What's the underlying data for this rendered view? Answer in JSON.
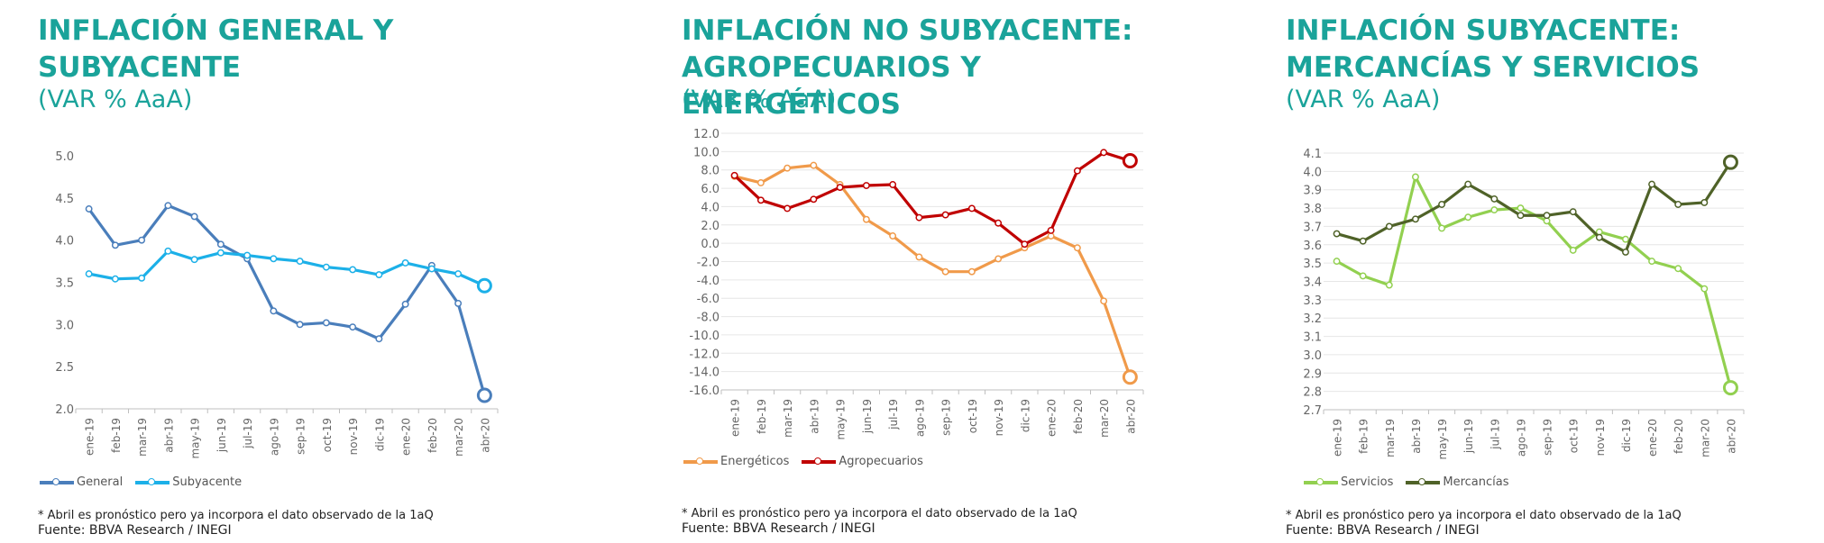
{
  "panels": [
    {
      "title_line1": "INFLACIÓN GENERAL Y",
      "title_line2": "SUBYACENTE",
      "subtitle": "(VAR % AaA)",
      "note": "* Abril es pronóstico pero ya incorpora el dato observado de la 1aQ",
      "source": "Fuente: BBVA Research / INEGI"
    },
    {
      "title_line1": "INFLACIÓN NO SUBYACENTE:",
      "title_line2": "AGROPECUARIOS Y ENERGÉTICOS",
      "subtitle": "(VAR % AaA)",
      "note": "* Abril es pronóstico pero ya incorpora el dato observado de la 1aQ",
      "source": "Fuente: BBVA Research / INEGI"
    },
    {
      "title_line1": "INFLACIÓN SUBYACENTE:",
      "title_line2": "MERCANCÍAS Y SERVICIOS",
      "subtitle": "(VAR % AaA)",
      "note": "* Abril es pronóstico pero ya incorpora el dato observado de la 1aQ",
      "source": "Fuente: BBVA Research / INEGI"
    }
  ],
  "chart_data": [
    {
      "type": "line",
      "categories": [
        "ene-19",
        "feb-19",
        "mar-19",
        "abr-19",
        "may-19",
        "jun-19",
        "jul-19",
        "ago-19",
        "sep-19",
        "oct-19",
        "nov-19",
        "dic-19",
        "ene-20",
        "feb-20",
        "mar-20",
        "abr-20"
      ],
      "ylim": [
        2.0,
        5.0
      ],
      "yticks": [
        "2.0",
        "2.5",
        "3.0",
        "3.5",
        "4.0",
        "4.5",
        "5.0"
      ],
      "grid": false,
      "legend_position": "bottom-left",
      "series": [
        {
          "name": "General",
          "color": "#4a7ebb",
          "values": [
            4.37,
            3.94,
            4.0,
            4.41,
            4.28,
            3.95,
            3.78,
            3.16,
            3.0,
            3.02,
            2.97,
            2.83,
            3.24,
            3.7,
            3.25,
            2.16
          ]
        },
        {
          "name": "Subyacente",
          "color": "#1cb0e8",
          "values": [
            3.6,
            3.54,
            3.55,
            3.87,
            3.77,
            3.85,
            3.82,
            3.78,
            3.75,
            3.68,
            3.65,
            3.59,
            3.73,
            3.66,
            3.6,
            3.46
          ]
        }
      ]
    },
    {
      "type": "line",
      "categories": [
        "ene-19",
        "feb-19",
        "mar-19",
        "abr-19",
        "may-19",
        "jun-19",
        "jul-19",
        "ago-19",
        "sep-19",
        "oct-19",
        "nov-19",
        "dic-19",
        "ene-20",
        "feb-20",
        "mar-20",
        "abr-20"
      ],
      "ylim": [
        -16.0,
        12.0
      ],
      "yticks": [
        "-16.0",
        "-14.0",
        "-12.0",
        "-10.0",
        "-8.0",
        "-6.0",
        "-4.0",
        "-2.0",
        "0.0",
        "2.0",
        "4.0",
        "6.0",
        "8.0",
        "10.0",
        "12.0"
      ],
      "grid": true,
      "legend_position": "bottom-left",
      "series": [
        {
          "name": "Energéticos",
          "color": "#f09a4a",
          "values": [
            7.3,
            6.6,
            8.2,
            8.5,
            6.4,
            2.6,
            0.8,
            -1.5,
            -3.1,
            -3.1,
            -1.7,
            -0.5,
            0.8,
            -0.5,
            -6.3,
            -14.6
          ]
        },
        {
          "name": "Agropecuarios",
          "color": "#c00000",
          "values": [
            7.4,
            4.7,
            3.8,
            4.8,
            6.1,
            6.3,
            6.4,
            2.8,
            3.1,
            3.8,
            2.2,
            -0.1,
            1.4,
            7.9,
            9.9,
            9.0
          ]
        }
      ]
    },
    {
      "type": "line",
      "categories": [
        "ene-19",
        "feb-19",
        "mar-19",
        "abr-19",
        "may-19",
        "jun-19",
        "jul-19",
        "ago-19",
        "sep-19",
        "oct-19",
        "nov-19",
        "dic-19",
        "ene-20",
        "feb-20",
        "mar-20",
        "abr-20"
      ],
      "ylim": [
        2.7,
        4.1
      ],
      "yticks": [
        "2.7",
        "2.8",
        "2.9",
        "3.0",
        "3.1",
        "3.2",
        "3.3",
        "3.4",
        "3.5",
        "3.6",
        "3.7",
        "3.8",
        "3.9",
        "4.0",
        "4.1"
      ],
      "grid": true,
      "legend_position": "bottom-left",
      "series": [
        {
          "name": "Servicios",
          "color": "#92d050",
          "values": [
            3.51,
            3.43,
            3.38,
            3.97,
            3.69,
            3.75,
            3.79,
            3.8,
            3.73,
            3.57,
            3.67,
            3.63,
            3.51,
            3.47,
            3.36,
            2.82
          ]
        },
        {
          "name": "Mercancías",
          "color": "#4f6228",
          "values": [
            3.66,
            3.62,
            3.7,
            3.74,
            3.82,
            3.93,
            3.85,
            3.76,
            3.76,
            3.78,
            3.64,
            3.56,
            3.93,
            3.82,
            3.83,
            4.05
          ]
        }
      ]
    }
  ]
}
